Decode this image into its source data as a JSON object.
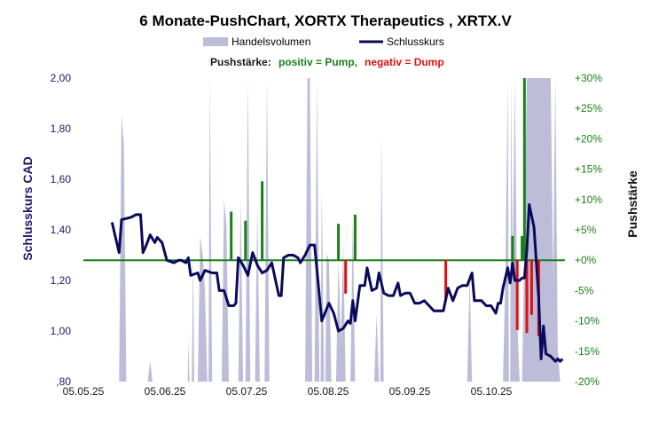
{
  "chart_data": {
    "type": "line",
    "title": "6 Monate-PushChart,  XORTX Therapeutics , XRTX.V",
    "legend": {
      "volume_label": "Handelsvolumen",
      "price_label": "Schlusskurs"
    },
    "push_legend": {
      "prefix": "Pushstärke:",
      "positive": "positiv = Pump,",
      "negative": "negativ = Dump"
    },
    "y_left": {
      "label": "Schlusskurs CAD",
      "ticks": [
        "2,00",
        "1,80",
        "1,60",
        "1,40",
        "1,20",
        "1,00",
        ",80"
      ],
      "range": [
        0.8,
        2.0
      ]
    },
    "y_right": {
      "label": "Pushstärke",
      "ticks": [
        "+30%",
        "+25%",
        "+20%",
        "+15%",
        "+10%",
        "+5%",
        "+0%",
        "-5%",
        "-10%",
        "-15%",
        "-20%"
      ],
      "range": [
        -20,
        30
      ]
    },
    "x_axis": {
      "ticks": [
        "05.05.25",
        "05.06.25",
        "05.07.25",
        "05.08.25",
        "05.09.25",
        "05.10.25"
      ]
    },
    "colors": {
      "price": "#0a0a5c",
      "volume": "#bdbdd9",
      "push_positive": "#1a7f1a",
      "push_negative": "#e01010",
      "zero_line": "#1a7f1a",
      "left_ticks": "#1a1a66",
      "right_ticks": "#1a7f1a"
    },
    "series_price": {
      "name": "Schlusskurs",
      "values": [
        {
          "d": 0,
          "v": 1.43
        },
        {
          "d": 3,
          "v": 1.31
        },
        {
          "d": 4,
          "v": 1.44
        },
        {
          "d": 8,
          "v": 1.45
        },
        {
          "d": 10,
          "v": 1.46
        },
        {
          "d": 12,
          "v": 1.46
        },
        {
          "d": 13,
          "v": 1.31
        },
        {
          "d": 14,
          "v": 1.33
        },
        {
          "d": 16,
          "v": 1.38
        },
        {
          "d": 18,
          "v": 1.35
        },
        {
          "d": 19,
          "v": 1.37
        },
        {
          "d": 21,
          "v": 1.35
        },
        {
          "d": 23,
          "v": 1.28
        },
        {
          "d": 26,
          "v": 1.27
        },
        {
          "d": 28,
          "v": 1.28
        },
        {
          "d": 29,
          "v": 1.28
        },
        {
          "d": 31,
          "v": 1.27
        },
        {
          "d": 32,
          "v": 1.29
        },
        {
          "d": 33,
          "v": 1.22
        },
        {
          "d": 36,
          "v": 1.23
        },
        {
          "d": 37,
          "v": 1.2
        },
        {
          "d": 39,
          "v": 1.24
        },
        {
          "d": 42,
          "v": 1.23
        },
        {
          "d": 44,
          "v": 1.23
        },
        {
          "d": 45,
          "v": 1.16
        },
        {
          "d": 47,
          "v": 1.16
        },
        {
          "d": 49,
          "v": 1.1
        },
        {
          "d": 51,
          "v": 1.1
        },
        {
          "d": 52,
          "v": 1.11
        },
        {
          "d": 53,
          "v": 1.29
        },
        {
          "d": 55,
          "v": 1.26
        },
        {
          "d": 57,
          "v": 1.22
        },
        {
          "d": 59,
          "v": 1.31
        },
        {
          "d": 61,
          "v": 1.26
        },
        {
          "d": 63,
          "v": 1.23
        },
        {
          "d": 65,
          "v": 1.24
        },
        {
          "d": 67,
          "v": 1.27
        },
        {
          "d": 70,
          "v": 1.14
        },
        {
          "d": 71,
          "v": 1.14
        },
        {
          "d": 72,
          "v": 1.29
        },
        {
          "d": 74,
          "v": 1.3
        },
        {
          "d": 76,
          "v": 1.3
        },
        {
          "d": 78,
          "v": 1.29
        },
        {
          "d": 79,
          "v": 1.27
        },
        {
          "d": 81,
          "v": 1.3
        },
        {
          "d": 83,
          "v": 1.34
        },
        {
          "d": 84,
          "v": 1.34
        },
        {
          "d": 85,
          "v": 1.34
        },
        {
          "d": 88,
          "v": 1.04
        },
        {
          "d": 91,
          "v": 1.11
        },
        {
          "d": 93,
          "v": 1.07
        },
        {
          "d": 95,
          "v": 1.0
        },
        {
          "d": 97,
          "v": 1.01
        },
        {
          "d": 99,
          "v": 1.04
        },
        {
          "d": 100,
          "v": 1.03
        },
        {
          "d": 101,
          "v": 1.12
        },
        {
          "d": 102,
          "v": 1.04
        },
        {
          "d": 104,
          "v": 1.18
        },
        {
          "d": 106,
          "v": 1.18
        },
        {
          "d": 107,
          "v": 1.25
        },
        {
          "d": 109,
          "v": 1.16
        },
        {
          "d": 111,
          "v": 1.17
        },
        {
          "d": 112,
          "v": 1.23
        },
        {
          "d": 114,
          "v": 1.15
        },
        {
          "d": 116,
          "v": 1.14
        },
        {
          "d": 118,
          "v": 1.14
        },
        {
          "d": 120,
          "v": 1.19
        },
        {
          "d": 121,
          "v": 1.14
        },
        {
          "d": 123,
          "v": 1.15
        },
        {
          "d": 125,
          "v": 1.15
        },
        {
          "d": 127,
          "v": 1.11
        },
        {
          "d": 129,
          "v": 1.11
        },
        {
          "d": 131,
          "v": 1.12
        },
        {
          "d": 133,
          "v": 1.1
        },
        {
          "d": 135,
          "v": 1.08
        },
        {
          "d": 137,
          "v": 1.08
        },
        {
          "d": 139,
          "v": 1.08
        },
        {
          "d": 141,
          "v": 1.17
        },
        {
          "d": 143,
          "v": 1.12
        },
        {
          "d": 145,
          "v": 1.17
        },
        {
          "d": 147,
          "v": 1.18
        },
        {
          "d": 149,
          "v": 1.18
        },
        {
          "d": 151,
          "v": 1.23
        },
        {
          "d": 152,
          "v": 1.12
        },
        {
          "d": 155,
          "v": 1.12
        },
        {
          "d": 157,
          "v": 1.1
        },
        {
          "d": 159,
          "v": 1.1
        },
        {
          "d": 161,
          "v": 1.07
        },
        {
          "d": 162,
          "v": 1.11
        },
        {
          "d": 163,
          "v": 1.11
        },
        {
          "d": 164,
          "v": 1.17
        },
        {
          "d": 166,
          "v": 1.25
        },
        {
          "d": 167,
          "v": 1.19
        },
        {
          "d": 168,
          "v": 1.27
        },
        {
          "d": 169,
          "v": 1.2
        },
        {
          "d": 171,
          "v": 1.2
        },
        {
          "d": 172,
          "v": 1.21
        },
        {
          "d": 173,
          "v": 1.21
        },
        {
          "d": 174,
          "v": 1.32
        },
        {
          "d": 175,
          "v": 1.5
        },
        {
          "d": 177,
          "v": 1.41
        },
        {
          "d": 179,
          "v": 1.13
        },
        {
          "d": 180,
          "v": 0.89
        },
        {
          "d": 181,
          "v": 1.02
        },
        {
          "d": 182,
          "v": 0.91
        },
        {
          "d": 184,
          "v": 0.9
        },
        {
          "d": 185,
          "v": 0.89
        },
        {
          "d": 186,
          "v": 0.88
        },
        {
          "d": 187,
          "v": 0.89
        },
        {
          "d": 188,
          "v": 0.88
        },
        {
          "d": 189,
          "v": 0.89
        }
      ]
    },
    "series_volume": {
      "name": "Handelsvolumen",
      "values": [
        {
          "d": 1,
          "v": 0
        },
        {
          "d": 3,
          "v": 0
        },
        {
          "d": 4,
          "v": 0.88
        },
        {
          "d": 5,
          "v": 0.78
        },
        {
          "d": 6,
          "v": 0
        },
        {
          "d": 15,
          "v": 0
        },
        {
          "d": 16,
          "v": 0.07
        },
        {
          "d": 17,
          "v": 0
        },
        {
          "d": 31,
          "v": 0
        },
        {
          "d": 32,
          "v": 0.14
        },
        {
          "d": 33,
          "v": 0
        },
        {
          "d": 33.5,
          "v": 0
        },
        {
          "d": 34,
          "v": 0.42
        },
        {
          "d": 35,
          "v": 0
        },
        {
          "d": 31.5,
          "v": 0
        },
        {
          "d": 32.5,
          "v": 0
        },
        {
          "d": 33.2,
          "v": 0
        },
        {
          "d": 34.5,
          "v": 0
        },
        {
          "d": 35.5,
          "v": 0
        },
        {
          "d": 31.8,
          "v": 0
        },
        {
          "d": 36,
          "v": 0
        },
        {
          "d": 37,
          "v": 0.48
        },
        {
          "d": 38,
          "v": 0.42
        },
        {
          "d": 39,
          "v": 0.3
        },
        {
          "d": 40,
          "v": 0
        },
        {
          "d": 35.8,
          "v": 0
        },
        {
          "d": 40.5,
          "v": 0
        },
        {
          "d": 41,
          "v": 1.0
        },
        {
          "d": 42,
          "v": 0
        },
        {
          "d": 46,
          "v": 0
        },
        {
          "d": 47,
          "v": 0.6
        },
        {
          "d": 48,
          "v": 0.52
        },
        {
          "d": 49,
          "v": 0
        },
        {
          "d": 53,
          "v": 0
        },
        {
          "d": 54,
          "v": 0.6
        },
        {
          "d": 55,
          "v": 0
        },
        {
          "d": 56,
          "v": 0
        },
        {
          "d": 57,
          "v": 1.0
        },
        {
          "d": 58,
          "v": 0
        },
        {
          "d": 60,
          "v": 0
        },
        {
          "d": 61,
          "v": 0.58
        },
        {
          "d": 62,
          "v": 0
        },
        {
          "d": 64,
          "v": 0
        },
        {
          "d": 65,
          "v": 1.0
        },
        {
          "d": 66,
          "v": 0
        },
        {
          "d": 81,
          "v": 0
        },
        {
          "d": 82,
          "v": 1.0
        },
        {
          "d": 83,
          "v": 1.0
        },
        {
          "d": 84,
          "v": 0
        },
        {
          "d": 85,
          "v": 0
        },
        {
          "d": 86,
          "v": 1.0
        },
        {
          "d": 87,
          "v": 0
        },
        {
          "d": 87.5,
          "v": 0
        },
        {
          "d": 88,
          "v": 0.64
        },
        {
          "d": 89,
          "v": 0
        },
        {
          "d": 89.5,
          "v": 0
        },
        {
          "d": 90,
          "v": 0.42
        },
        {
          "d": 91,
          "v": 0.4
        },
        {
          "d": 92,
          "v": 0
        },
        {
          "d": 94,
          "v": 0
        },
        {
          "d": 95,
          "v": 0.4
        },
        {
          "d": 96,
          "v": 0.14
        },
        {
          "d": 97,
          "v": 0.46
        },
        {
          "d": 98,
          "v": 0
        },
        {
          "d": 100,
          "v": 0
        },
        {
          "d": 101,
          "v": 0.54
        },
        {
          "d": 102,
          "v": 0
        },
        {
          "d": 110,
          "v": 0
        },
        {
          "d": 111,
          "v": 0.22
        },
        {
          "d": 112,
          "v": 0
        },
        {
          "d": 112.5,
          "v": 0
        },
        {
          "d": 113,
          "v": 0.82
        },
        {
          "d": 114,
          "v": 0
        },
        {
          "d": 149,
          "v": 0
        },
        {
          "d": 150,
          "v": 0.35
        },
        {
          "d": 151,
          "v": 0
        },
        {
          "d": 164,
          "v": 0
        },
        {
          "d": 165,
          "v": 0.35
        },
        {
          "d": 166,
          "v": 1.0
        },
        {
          "d": 166.5,
          "v": 0
        },
        {
          "d": 167,
          "v": 0
        },
        {
          "d": 167.5,
          "v": 1.0
        },
        {
          "d": 168,
          "v": 0.35
        },
        {
          "d": 169,
          "v": 1.0
        },
        {
          "d": 170,
          "v": 0.2
        },
        {
          "d": 171,
          "v": 0
        },
        {
          "d": 172,
          "v": 0
        },
        {
          "d": 173,
          "v": 0.45
        },
        {
          "d": 174,
          "v": 1.0
        },
        {
          "d": 175,
          "v": 1.0
        },
        {
          "d": 176,
          "v": 1.0
        },
        {
          "d": 177,
          "v": 1.0
        },
        {
          "d": 178,
          "v": 1.0
        },
        {
          "d": 179,
          "v": 1.0
        },
        {
          "d": 180,
          "v": 1.0
        },
        {
          "d": 181,
          "v": 1.0
        },
        {
          "d": 182,
          "v": 1.0
        },
        {
          "d": 183,
          "v": 1.0
        },
        {
          "d": 184,
          "v": 1.0
        },
        {
          "d": 185,
          "v": 0.35
        },
        {
          "d": 186,
          "v": 1.0
        },
        {
          "d": 187,
          "v": 0.1
        },
        {
          "d": 188,
          "v": 0
        }
      ]
    },
    "series_push": {
      "name": "Pushstärke",
      "values": [
        {
          "d": 50,
          "v": 8
        },
        {
          "d": 56,
          "v": 6.5
        },
        {
          "d": 63,
          "v": 13
        },
        {
          "d": 95,
          "v": 6
        },
        {
          "d": 98,
          "v": -5.5
        },
        {
          "d": 102,
          "v": 7.5
        },
        {
          "d": 140,
          "v": -6.5
        },
        {
          "d": 168,
          "v": 4
        },
        {
          "d": 170,
          "v": -11.5
        },
        {
          "d": 172,
          "v": 4
        },
        {
          "d": 173,
          "v": 30
        },
        {
          "d": 174,
          "v": -12
        },
        {
          "d": 176,
          "v": -9
        },
        {
          "d": 179,
          "v": -12.5
        }
      ]
    },
    "x_domain": [
      -12,
      190
    ]
  }
}
